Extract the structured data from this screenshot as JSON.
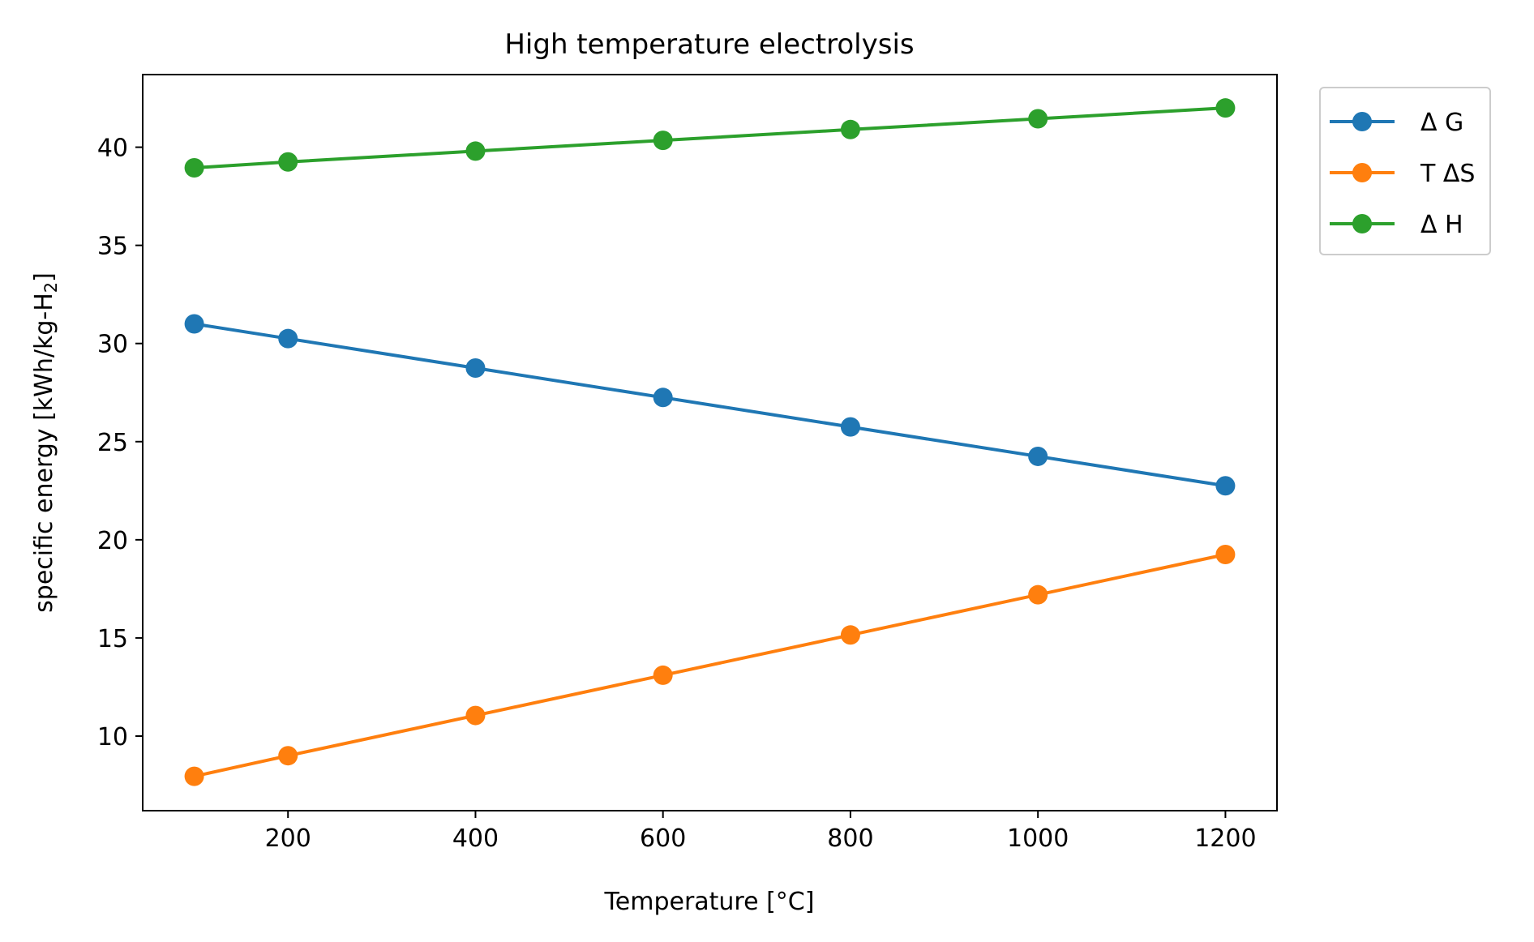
{
  "chart_data": {
    "type": "line",
    "title": "High temperature electrolysis",
    "xlabel": "Temperature [°C]",
    "ylabel": "specific energy [kWh/kg-H",
    "ylabel_subscript": "2",
    "ylabel_suffix": "]",
    "xlim": [
      45,
      1255
    ],
    "ylim": [
      6.2,
      43.7
    ],
    "xticks": [
      200,
      400,
      600,
      800,
      1000,
      1200
    ],
    "yticks": [
      10,
      15,
      20,
      25,
      30,
      35,
      40
    ],
    "grid": false,
    "legend_position": "outside-top-right",
    "x": [
      100,
      200,
      400,
      600,
      800,
      1000,
      1200
    ],
    "series": [
      {
        "name": "Δ G",
        "color": "#1f77b4",
        "values": [
          31.0,
          30.25,
          28.75,
          27.25,
          25.75,
          24.25,
          22.75
        ]
      },
      {
        "name": "T ΔS",
        "color": "#ff7f0e",
        "values": [
          7.95,
          9.0,
          11.05,
          13.1,
          15.15,
          17.2,
          19.25
        ]
      },
      {
        "name": "Δ H",
        "color": "#2ca02c",
        "values": [
          38.95,
          39.25,
          39.8,
          40.35,
          40.9,
          41.45,
          42.0
        ]
      }
    ]
  }
}
